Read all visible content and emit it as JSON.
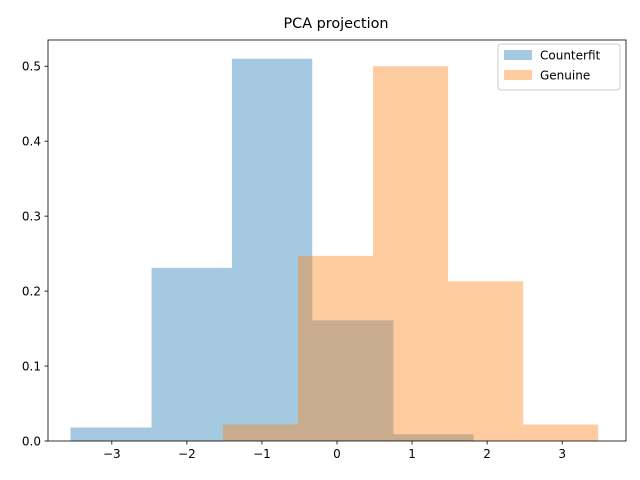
{
  "chart_data": {
    "type": "histogram",
    "title": "PCA projection",
    "xlabel": "",
    "ylabel": "",
    "xlim": [
      -3.85,
      3.85
    ],
    "ylim": [
      0,
      0.535
    ],
    "xticks": [
      -3,
      -2,
      -1,
      0,
      1,
      2,
      3
    ],
    "xtick_labels": [
      "−3",
      "−2",
      "−1",
      "0",
      "1",
      "2",
      "3"
    ],
    "yticks": [
      0.0,
      0.1,
      0.2,
      0.3,
      0.4,
      0.5
    ],
    "ytick_labels": [
      "0.0",
      "0.1",
      "0.2",
      "0.3",
      "0.4",
      "0.5"
    ],
    "grid": false,
    "legend_position": "top-right",
    "series": [
      {
        "name": "Counterfit",
        "color": "#1f77b4",
        "opacity": 0.4,
        "bins": [
          {
            "x0": -3.55,
            "x1": -2.47,
            "value": 0.018
          },
          {
            "x0": -2.47,
            "x1": -1.4,
            "value": 0.231
          },
          {
            "x0": -1.4,
            "x1": -0.33,
            "value": 0.51
          },
          {
            "x0": -0.33,
            "x1": 0.75,
            "value": 0.161
          },
          {
            "x0": 0.75,
            "x1": 1.82,
            "value": 0.009
          }
        ]
      },
      {
        "name": "Genuine",
        "color": "#ff7f0e",
        "opacity": 0.4,
        "bins": [
          {
            "x0": -1.52,
            "x1": -0.52,
            "value": 0.022
          },
          {
            "x0": -0.52,
            "x1": 0.48,
            "value": 0.247
          },
          {
            "x0": 0.48,
            "x1": 1.48,
            "value": 0.5
          },
          {
            "x0": 1.48,
            "x1": 2.48,
            "value": 0.213
          },
          {
            "x0": 2.48,
            "x1": 3.48,
            "value": 0.022
          }
        ]
      }
    ]
  }
}
